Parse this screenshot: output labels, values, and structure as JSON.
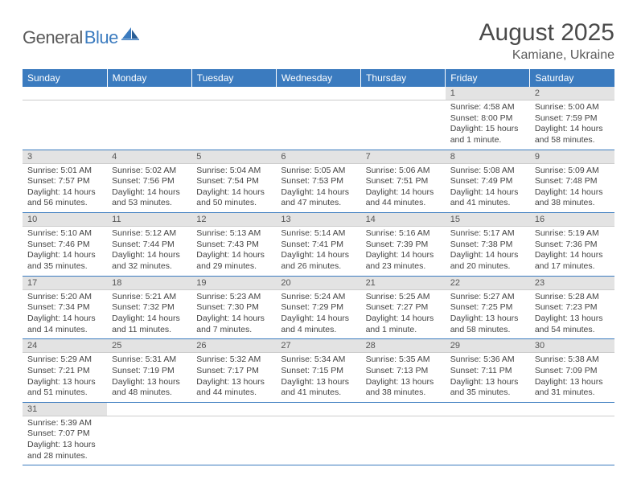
{
  "logo": {
    "part1": "General",
    "part2": "Blue"
  },
  "title": "August 2025",
  "location": "Kamiane, Ukraine",
  "colors": {
    "header_bg": "#3b7bbf",
    "header_text": "#ffffff",
    "daynum_bg": "#e3e3e3",
    "row_border": "#3b7bbf",
    "body_text": "#444444",
    "title_text": "#4a4a4a"
  },
  "weekdays": [
    "Sunday",
    "Monday",
    "Tuesday",
    "Wednesday",
    "Thursday",
    "Friday",
    "Saturday"
  ],
  "weeks": [
    [
      null,
      null,
      null,
      null,
      null,
      {
        "d": "1",
        "sr": "4:58 AM",
        "ss": "8:00 PM",
        "dl": "15 hours and 1 minute."
      },
      {
        "d": "2",
        "sr": "5:00 AM",
        "ss": "7:59 PM",
        "dl": "14 hours and 58 minutes."
      }
    ],
    [
      {
        "d": "3",
        "sr": "5:01 AM",
        "ss": "7:57 PM",
        "dl": "14 hours and 56 minutes."
      },
      {
        "d": "4",
        "sr": "5:02 AM",
        "ss": "7:56 PM",
        "dl": "14 hours and 53 minutes."
      },
      {
        "d": "5",
        "sr": "5:04 AM",
        "ss": "7:54 PM",
        "dl": "14 hours and 50 minutes."
      },
      {
        "d": "6",
        "sr": "5:05 AM",
        "ss": "7:53 PM",
        "dl": "14 hours and 47 minutes."
      },
      {
        "d": "7",
        "sr": "5:06 AM",
        "ss": "7:51 PM",
        "dl": "14 hours and 44 minutes."
      },
      {
        "d": "8",
        "sr": "5:08 AM",
        "ss": "7:49 PM",
        "dl": "14 hours and 41 minutes."
      },
      {
        "d": "9",
        "sr": "5:09 AM",
        "ss": "7:48 PM",
        "dl": "14 hours and 38 minutes."
      }
    ],
    [
      {
        "d": "10",
        "sr": "5:10 AM",
        "ss": "7:46 PM",
        "dl": "14 hours and 35 minutes."
      },
      {
        "d": "11",
        "sr": "5:12 AM",
        "ss": "7:44 PM",
        "dl": "14 hours and 32 minutes."
      },
      {
        "d": "12",
        "sr": "5:13 AM",
        "ss": "7:43 PM",
        "dl": "14 hours and 29 minutes."
      },
      {
        "d": "13",
        "sr": "5:14 AM",
        "ss": "7:41 PM",
        "dl": "14 hours and 26 minutes."
      },
      {
        "d": "14",
        "sr": "5:16 AM",
        "ss": "7:39 PM",
        "dl": "14 hours and 23 minutes."
      },
      {
        "d": "15",
        "sr": "5:17 AM",
        "ss": "7:38 PM",
        "dl": "14 hours and 20 minutes."
      },
      {
        "d": "16",
        "sr": "5:19 AM",
        "ss": "7:36 PM",
        "dl": "14 hours and 17 minutes."
      }
    ],
    [
      {
        "d": "17",
        "sr": "5:20 AM",
        "ss": "7:34 PM",
        "dl": "14 hours and 14 minutes."
      },
      {
        "d": "18",
        "sr": "5:21 AM",
        "ss": "7:32 PM",
        "dl": "14 hours and 11 minutes."
      },
      {
        "d": "19",
        "sr": "5:23 AM",
        "ss": "7:30 PM",
        "dl": "14 hours and 7 minutes."
      },
      {
        "d": "20",
        "sr": "5:24 AM",
        "ss": "7:29 PM",
        "dl": "14 hours and 4 minutes."
      },
      {
        "d": "21",
        "sr": "5:25 AM",
        "ss": "7:27 PM",
        "dl": "14 hours and 1 minute."
      },
      {
        "d": "22",
        "sr": "5:27 AM",
        "ss": "7:25 PM",
        "dl": "13 hours and 58 minutes."
      },
      {
        "d": "23",
        "sr": "5:28 AM",
        "ss": "7:23 PM",
        "dl": "13 hours and 54 minutes."
      }
    ],
    [
      {
        "d": "24",
        "sr": "5:29 AM",
        "ss": "7:21 PM",
        "dl": "13 hours and 51 minutes."
      },
      {
        "d": "25",
        "sr": "5:31 AM",
        "ss": "7:19 PM",
        "dl": "13 hours and 48 minutes."
      },
      {
        "d": "26",
        "sr": "5:32 AM",
        "ss": "7:17 PM",
        "dl": "13 hours and 44 minutes."
      },
      {
        "d": "27",
        "sr": "5:34 AM",
        "ss": "7:15 PM",
        "dl": "13 hours and 41 minutes."
      },
      {
        "d": "28",
        "sr": "5:35 AM",
        "ss": "7:13 PM",
        "dl": "13 hours and 38 minutes."
      },
      {
        "d": "29",
        "sr": "5:36 AM",
        "ss": "7:11 PM",
        "dl": "13 hours and 35 minutes."
      },
      {
        "d": "30",
        "sr": "5:38 AM",
        "ss": "7:09 PM",
        "dl": "13 hours and 31 minutes."
      }
    ],
    [
      {
        "d": "31",
        "sr": "5:39 AM",
        "ss": "7:07 PM",
        "dl": "13 hours and 28 minutes."
      },
      null,
      null,
      null,
      null,
      null,
      null
    ]
  ],
  "labels": {
    "sunrise": "Sunrise:",
    "sunset": "Sunset:",
    "daylight": "Daylight:"
  }
}
